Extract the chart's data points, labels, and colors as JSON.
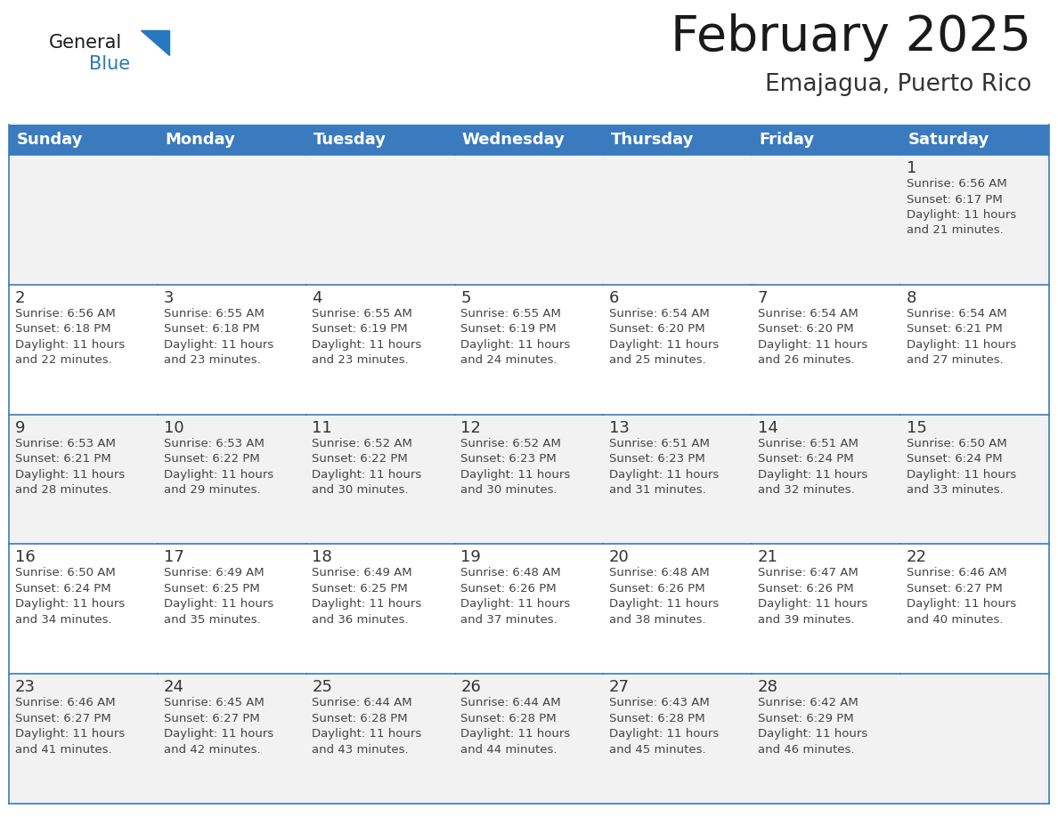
{
  "title": "February 2025",
  "subtitle": "Emajagua, Puerto Rico",
  "days_of_week": [
    "Sunday",
    "Monday",
    "Tuesday",
    "Wednesday",
    "Thursday",
    "Friday",
    "Saturday"
  ],
  "header_bg": "#3a7abf",
  "header_text_color": "#ffffff",
  "cell_bg_odd": "#f2f2f2",
  "cell_bg_even": "#ffffff",
  "cell_border_color": "#3a7abf",
  "day_number_color": "#333333",
  "info_text_color": "#444444",
  "title_color": "#1a1a1a",
  "subtitle_color": "#333333",
  "logo_general_color": "#1a1a1a",
  "logo_blue_color": "#2878c0",
  "calendar_data": [
    [
      {
        "day": null,
        "sunrise": null,
        "sunset": null,
        "daylight": null
      },
      {
        "day": null,
        "sunrise": null,
        "sunset": null,
        "daylight": null
      },
      {
        "day": null,
        "sunrise": null,
        "sunset": null,
        "daylight": null
      },
      {
        "day": null,
        "sunrise": null,
        "sunset": null,
        "daylight": null
      },
      {
        "day": null,
        "sunrise": null,
        "sunset": null,
        "daylight": null
      },
      {
        "day": null,
        "sunrise": null,
        "sunset": null,
        "daylight": null
      },
      {
        "day": 1,
        "sunrise": "6:56 AM",
        "sunset": "6:17 PM",
        "daylight": "11 hours and 21 minutes."
      }
    ],
    [
      {
        "day": 2,
        "sunrise": "6:56 AM",
        "sunset": "6:18 PM",
        "daylight": "11 hours and 22 minutes."
      },
      {
        "day": 3,
        "sunrise": "6:55 AM",
        "sunset": "6:18 PM",
        "daylight": "11 hours and 23 minutes."
      },
      {
        "day": 4,
        "sunrise": "6:55 AM",
        "sunset": "6:19 PM",
        "daylight": "11 hours and 23 minutes."
      },
      {
        "day": 5,
        "sunrise": "6:55 AM",
        "sunset": "6:19 PM",
        "daylight": "11 hours and 24 minutes."
      },
      {
        "day": 6,
        "sunrise": "6:54 AM",
        "sunset": "6:20 PM",
        "daylight": "11 hours and 25 minutes."
      },
      {
        "day": 7,
        "sunrise": "6:54 AM",
        "sunset": "6:20 PM",
        "daylight": "11 hours and 26 minutes."
      },
      {
        "day": 8,
        "sunrise": "6:54 AM",
        "sunset": "6:21 PM",
        "daylight": "11 hours and 27 minutes."
      }
    ],
    [
      {
        "day": 9,
        "sunrise": "6:53 AM",
        "sunset": "6:21 PM",
        "daylight": "11 hours and 28 minutes."
      },
      {
        "day": 10,
        "sunrise": "6:53 AM",
        "sunset": "6:22 PM",
        "daylight": "11 hours and 29 minutes."
      },
      {
        "day": 11,
        "sunrise": "6:52 AM",
        "sunset": "6:22 PM",
        "daylight": "11 hours and 30 minutes."
      },
      {
        "day": 12,
        "sunrise": "6:52 AM",
        "sunset": "6:23 PM",
        "daylight": "11 hours and 30 minutes."
      },
      {
        "day": 13,
        "sunrise": "6:51 AM",
        "sunset": "6:23 PM",
        "daylight": "11 hours and 31 minutes."
      },
      {
        "day": 14,
        "sunrise": "6:51 AM",
        "sunset": "6:24 PM",
        "daylight": "11 hours and 32 minutes."
      },
      {
        "day": 15,
        "sunrise": "6:50 AM",
        "sunset": "6:24 PM",
        "daylight": "11 hours and 33 minutes."
      }
    ],
    [
      {
        "day": 16,
        "sunrise": "6:50 AM",
        "sunset": "6:24 PM",
        "daylight": "11 hours and 34 minutes."
      },
      {
        "day": 17,
        "sunrise": "6:49 AM",
        "sunset": "6:25 PM",
        "daylight": "11 hours and 35 minutes."
      },
      {
        "day": 18,
        "sunrise": "6:49 AM",
        "sunset": "6:25 PM",
        "daylight": "11 hours and 36 minutes."
      },
      {
        "day": 19,
        "sunrise": "6:48 AM",
        "sunset": "6:26 PM",
        "daylight": "11 hours and 37 minutes."
      },
      {
        "day": 20,
        "sunrise": "6:48 AM",
        "sunset": "6:26 PM",
        "daylight": "11 hours and 38 minutes."
      },
      {
        "day": 21,
        "sunrise": "6:47 AM",
        "sunset": "6:26 PM",
        "daylight": "11 hours and 39 minutes."
      },
      {
        "day": 22,
        "sunrise": "6:46 AM",
        "sunset": "6:27 PM",
        "daylight": "11 hours and 40 minutes."
      }
    ],
    [
      {
        "day": 23,
        "sunrise": "6:46 AM",
        "sunset": "6:27 PM",
        "daylight": "11 hours and 41 minutes."
      },
      {
        "day": 24,
        "sunrise": "6:45 AM",
        "sunset": "6:27 PM",
        "daylight": "11 hours and 42 minutes."
      },
      {
        "day": 25,
        "sunrise": "6:44 AM",
        "sunset": "6:28 PM",
        "daylight": "11 hours and 43 minutes."
      },
      {
        "day": 26,
        "sunrise": "6:44 AM",
        "sunset": "6:28 PM",
        "daylight": "11 hours and 44 minutes."
      },
      {
        "day": 27,
        "sunrise": "6:43 AM",
        "sunset": "6:28 PM",
        "daylight": "11 hours and 45 minutes."
      },
      {
        "day": 28,
        "sunrise": "6:42 AM",
        "sunset": "6:29 PM",
        "daylight": "11 hours and 46 minutes."
      },
      {
        "day": null,
        "sunrise": null,
        "sunset": null,
        "daylight": null
      }
    ]
  ]
}
